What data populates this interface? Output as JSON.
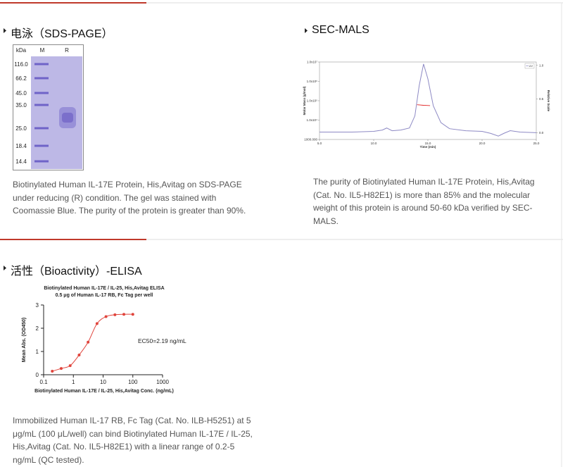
{
  "sections": [
    {
      "title": "电泳（SDS-PAGE）",
      "text": "Biotinylated Human IL-17E Protein, His,Avitag on SDS-PAGE under reducing (R) condition. The gel was stained with Coomassie Blue. The purity of the protein is greater than 90%."
    },
    {
      "title": "SEC-MALS",
      "text": "The purity of Biotinylated Human IL-17E Protein, His,Avitag (Cat. No. IL5-H82E1) is more than 85% and the molecular weight of this protein is around 50-60 kDa verified by SEC-MALS."
    },
    {
      "title": "活性（Bioactivity）-ELISA",
      "text": "Immobilized Human IL-17 RB, Fc Tag (Cat. No. ILB-H5251) at 5 μg/mL (100 μL/well) can bind Biotinylated Human IL-17E / IL-25, His,Avitag (Cat. No. IL5-H82E1) with a linear range of 0.2-5 ng/mL (QC tested)."
    }
  ],
  "gel": {
    "unit_label": "kDa",
    "lanes": [
      "M",
      "R"
    ],
    "markers": [
      "116.0",
      "66.2",
      "45.0",
      "35.0",
      "25.0",
      "18.4",
      "14.4"
    ]
  },
  "chart_data": [
    {
      "type": "line",
      "xlabel": "Time (min)",
      "ylabel": "Molar Mass (g/mol)",
      "y2label": "Relative Scale",
      "xlim": [
        5,
        25
      ],
      "xticks": [
        {
          "value": 5,
          "label": "5.0"
        },
        {
          "value": 10,
          "label": "10.0"
        },
        {
          "value": 15,
          "label": "15.0"
        },
        {
          "value": 20,
          "label": "20.0"
        },
        {
          "value": 25,
          "label": "25.0"
        }
      ],
      "ylim": [
        1000,
        10000000
      ],
      "log_y": true,
      "yticks": [
        {
          "value": 1000,
          "label": "1000.000"
        },
        {
          "value": 10000,
          "label": "1.0x10⁴"
        },
        {
          "value": 100000,
          "label": "1.0x10⁵"
        },
        {
          "value": 1000000,
          "label": "1.0x10⁶"
        },
        {
          "value": 10000000,
          "label": "1.0x10⁷"
        }
      ],
      "y2lim": [
        -0.1,
        1.05
      ],
      "y2ticks": [
        {
          "value": 0,
          "label": "0.0"
        },
        0.5,
        {
          "value": 1,
          "label": "1.0"
        }
      ],
      "legend": "top-right",
      "series": [
        {
          "name": "UV",
          "color": "#8d89c4",
          "axis": "y2",
          "x": [
            5,
            8,
            10,
            10.8,
            11.2,
            11.7,
            12.5,
            13.3,
            13.8,
            14.2,
            14.6,
            15.0,
            15.5,
            16.2,
            17.0,
            18.5,
            20.0,
            20.8,
            21.5,
            22.0,
            22.6,
            23.5,
            25
          ],
          "values": [
            0.01,
            0.01,
            0.02,
            0.04,
            0.07,
            0.03,
            0.04,
            0.07,
            0.25,
            0.7,
            1.02,
            0.8,
            0.4,
            0.15,
            0.06,
            0.03,
            0.02,
            -0.01,
            -0.05,
            -0.01,
            0.03,
            0.01,
            0.0
          ]
        },
        {
          "color": "#e02020",
          "axis": "y",
          "x": [
            14.0,
            14.3,
            14.6,
            14.9,
            15.2
          ],
          "values": [
            62000,
            60000,
            58000,
            57000,
            56000
          ]
        }
      ]
    },
    {
      "type": "scatter",
      "title": "Biotinylated Human IL-17E / IL-25, His,Avitag ELISA",
      "subtitle": "0.5 μg of Human IL-17 RB, Fc Tag per well",
      "xlabel": "Biotinylated Human IL-17E / IL-25, His,Avitag Conc. (ng/mL)",
      "ylabel": "Mean Abs. (OD450)",
      "annotation": "EC50=2.19 ng/mL",
      "xlim": [
        0.1,
        1000
      ],
      "log_x": true,
      "xticks": [
        0.1,
        1,
        10,
        100,
        1000
      ],
      "ylim": [
        0,
        3
      ],
      "yticks": [
        0,
        1,
        2,
        3
      ],
      "fit_line": true,
      "x": [
        0.195,
        0.39,
        0.78,
        1.5625,
        3.125,
        6.25,
        12.5,
        25,
        50,
        100
      ],
      "series": [
        {
          "color": "#e0443c",
          "values": [
            0.15,
            0.27,
            0.39,
            0.85,
            1.4,
            2.2,
            2.5,
            2.58,
            2.6,
            2.6
          ]
        }
      ]
    }
  ]
}
